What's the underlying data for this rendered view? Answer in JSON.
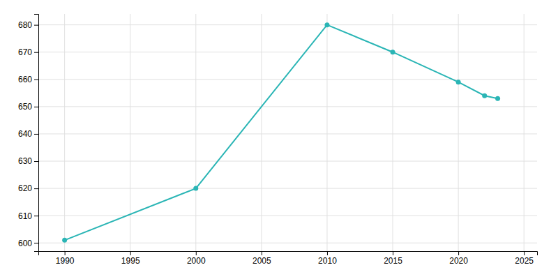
{
  "chart_data": {
    "type": "line",
    "x": [
      1990,
      2000,
      2010,
      2015,
      2020,
      2022,
      2023
    ],
    "values": [
      601,
      620,
      680,
      670,
      659,
      654,
      653
    ],
    "color": "#2ab5b5",
    "marker": "circle",
    "xlim": [
      1988,
      2026
    ],
    "ylim": [
      597,
      684
    ],
    "xticks": [
      1990,
      1995,
      2000,
      2005,
      2010,
      2015,
      2020,
      2025
    ],
    "yticks": [
      600,
      610,
      620,
      630,
      640,
      650,
      660,
      670,
      680
    ],
    "grid": true
  }
}
